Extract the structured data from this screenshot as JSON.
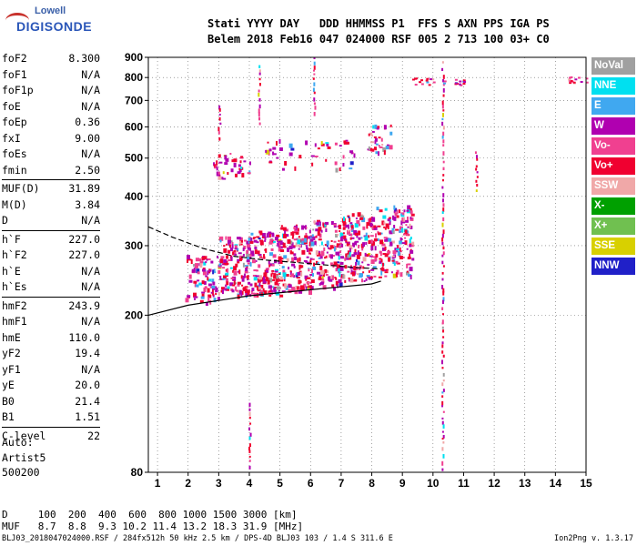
{
  "logo": {
    "top": "Lowell",
    "bottom": "DIGISONDE"
  },
  "header": {
    "line1": "Stati YYYY DAY   DDD HHMMSS P1  FFS S AXN PPS IGA PS",
    "line2": "Belem 2018 Feb16 047 024000 RSF 005 2 713 100 03+ C0"
  },
  "params": [
    {
      "label": "foF2",
      "value": "8.300"
    },
    {
      "label": "foF1",
      "value": "N/A"
    },
    {
      "label": "foF1p",
      "value": "N/A"
    },
    {
      "label": "foE",
      "value": "N/A"
    },
    {
      "label": "foEp",
      "value": "0.36"
    },
    {
      "label": "fxI",
      "value": "9.00"
    },
    {
      "label": "foEs",
      "value": "N/A"
    },
    {
      "label": "fmin",
      "value": "2.50"
    },
    {
      "label": "MUF(D)",
      "value": "31.89"
    },
    {
      "label": "M(D)",
      "value": "3.84"
    },
    {
      "label": "D",
      "value": "N/A"
    },
    {
      "label": "h`F",
      "value": "227.0"
    },
    {
      "label": "h`F2",
      "value": "227.0"
    },
    {
      "label": "h`E",
      "value": "N/A"
    },
    {
      "label": "h`Es",
      "value": "N/A"
    },
    {
      "label": "hmF2",
      "value": "243.9"
    },
    {
      "label": "hmF1",
      "value": "N/A"
    },
    {
      "label": "hmE",
      "value": "110.0"
    },
    {
      "label": "yF2",
      "value": "19.4"
    },
    {
      "label": "yF1",
      "value": "N/A"
    },
    {
      "label": "yE",
      "value": "20.0"
    },
    {
      "label": "B0",
      "value": "21.4"
    },
    {
      "label": "B1",
      "value": "1.51"
    },
    {
      "label": "C-level",
      "value": "22"
    }
  ],
  "auto": [
    "Auto:",
    "Artist5",
    "500200"
  ],
  "legend": [
    {
      "label": "NoVal",
      "color": "#a0a0a0"
    },
    {
      "label": "NNE",
      "color": "#00e0f0"
    },
    {
      "label": "E",
      "color": "#40a8f0"
    },
    {
      "label": "W",
      "color": "#b000b0"
    },
    {
      "label": "Vo-",
      "color": "#f04090"
    },
    {
      "label": "Vo+",
      "color": "#f00030"
    },
    {
      "label": "SSW",
      "color": "#f0a8a8"
    },
    {
      "label": "X-",
      "color": "#00a000"
    },
    {
      "label": "X+",
      "color": "#70c050"
    },
    {
      "label": "SSE",
      "color": "#d8d000"
    },
    {
      "label": "NNW",
      "color": "#2020c8"
    }
  ],
  "muf_table": {
    "line1": "D     100  200  400  600  800 1000 1500 3000 [km]",
    "line2": "MUF   8.7  8.8  9.3 10.2 11.4 13.2 18.3 31.9 [MHz]"
  },
  "footer": "BLJ03_2018047024000.RSF / 284fx512h 50 kHz 2.5 km / DPS-4D BLJ03 103 / 1.4 S 311.6 E",
  "version": "Ion2Png v. 1.3.17",
  "chart_data": {
    "type": "scatter",
    "title": "",
    "xlabel": "",
    "ylabel": "",
    "xlim": [
      0.7,
      15
    ],
    "ylim": [
      80,
      900
    ],
    "y_scale": "log",
    "x_ticks": [
      1,
      2,
      3,
      4,
      5,
      6,
      7,
      8,
      9,
      10,
      11,
      12,
      13,
      14,
      15
    ],
    "y_ticks": [
      80,
      200,
      300,
      400,
      500,
      600,
      700,
      800,
      900
    ],
    "grid": "dotted",
    "profile_solid": [
      [
        0.7,
        200
      ],
      [
        2.0,
        212
      ],
      [
        4.0,
        224
      ],
      [
        6.0,
        232
      ],
      [
        7.0,
        236
      ],
      [
        8.0,
        240
      ],
      [
        8.3,
        244
      ]
    ],
    "profile_dashed": [
      [
        0.7,
        335
      ],
      [
        1.5,
        315
      ],
      [
        2.5,
        295
      ],
      [
        3.5,
        282
      ],
      [
        4.5,
        276
      ],
      [
        5.5,
        272
      ],
      [
        6.5,
        268
      ],
      [
        7.5,
        264
      ],
      [
        8.3,
        262
      ]
    ],
    "echo_clusters": [
      {
        "x": [
          1.9,
          3.0
        ],
        "h": [
          215,
          285
        ],
        "n": 90
      },
      {
        "x": [
          3.0,
          4.0
        ],
        "h": [
          225,
          320
        ],
        "n": 140
      },
      {
        "x": [
          4.0,
          5.0
        ],
        "h": [
          225,
          330
        ],
        "n": 150
      },
      {
        "x": [
          5.0,
          6.0
        ],
        "h": [
          230,
          340
        ],
        "n": 150
      },
      {
        "x": [
          6.0,
          7.0
        ],
        "h": [
          235,
          350
        ],
        "n": 140
      },
      {
        "x": [
          7.0,
          8.0
        ],
        "h": [
          245,
          365
        ],
        "n": 150
      },
      {
        "x": [
          8.0,
          9.3
        ],
        "h": [
          250,
          380
        ],
        "n": 170
      },
      {
        "x": [
          2.8,
          4.0
        ],
        "h": [
          445,
          520
        ],
        "n": 40
      },
      {
        "x": [
          4.5,
          7.5
        ],
        "h": [
          470,
          560
        ],
        "n": 50
      },
      {
        "x": [
          7.8,
          8.6
        ],
        "h": [
          520,
          610
        ],
        "n": 35
      }
    ],
    "vertical_traces": [
      {
        "x": 4.3,
        "h": [
          600,
          860
        ]
      },
      {
        "x": 3.0,
        "h": [
          560,
          680
        ]
      },
      {
        "x": 6.1,
        "h": [
          650,
          900
        ]
      },
      {
        "x": 10.3,
        "h": [
          80,
          880
        ]
      },
      {
        "x": 4.0,
        "h": [
          80,
          120
        ]
      },
      {
        "x": 11.4,
        "h": [
          410,
          520
        ]
      }
    ],
    "traces_top": [
      {
        "x": [
          9.3,
          10.0
        ],
        "h": 785
      },
      {
        "x": [
          10.3,
          11.0
        ],
        "h": 780
      },
      {
        "x": [
          14.4,
          15.0
        ],
        "h": 790
      }
    ]
  }
}
